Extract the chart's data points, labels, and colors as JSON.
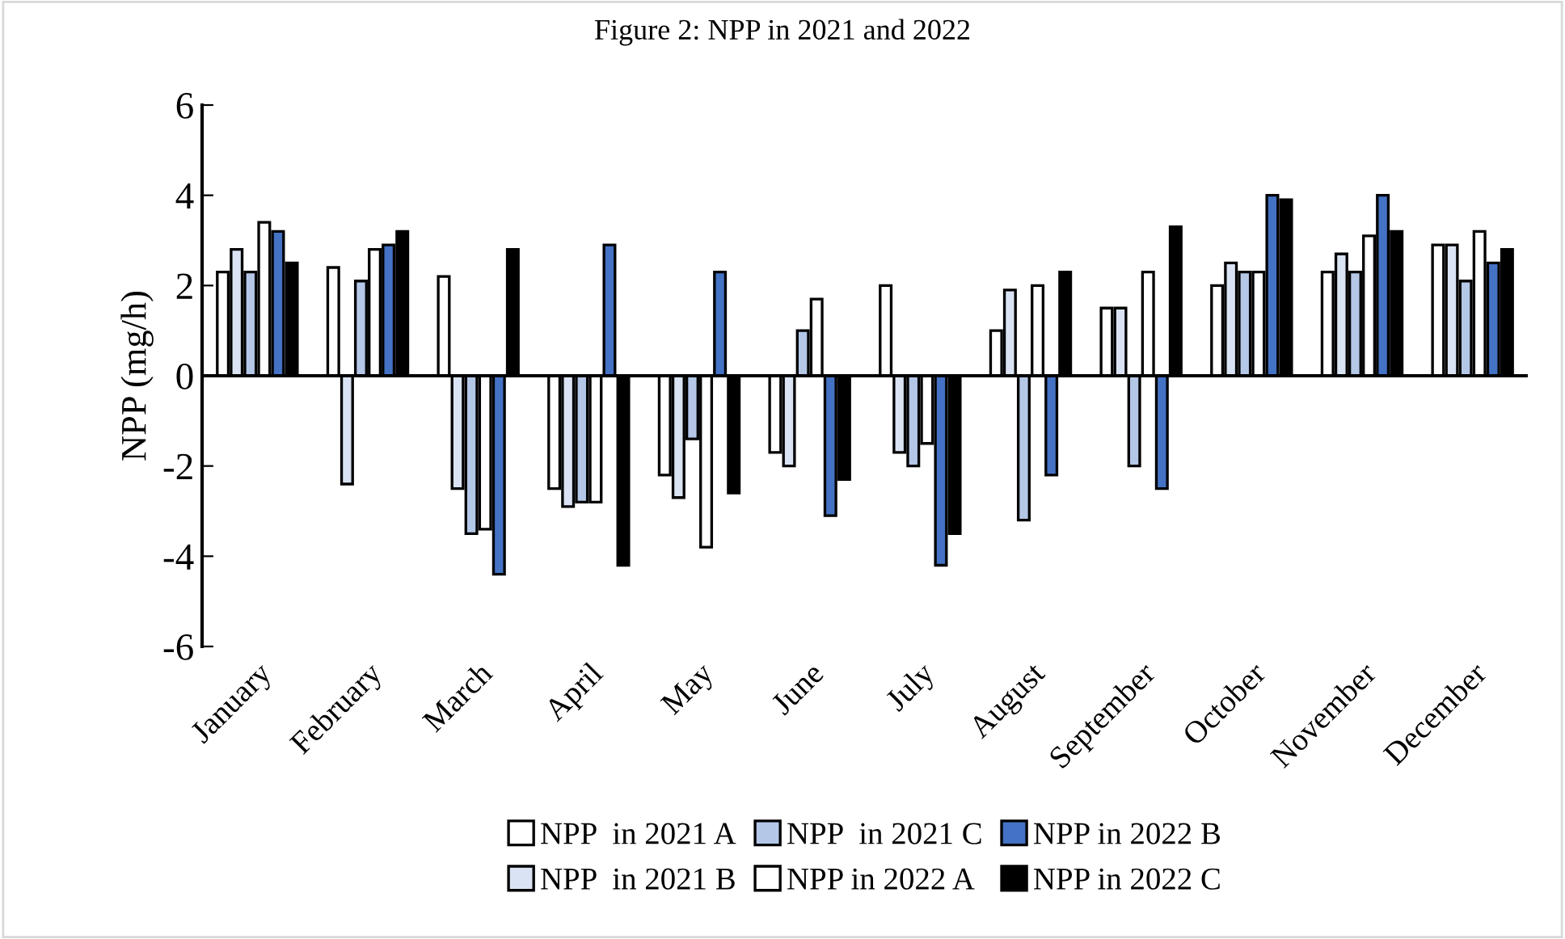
{
  "chart_data": {
    "type": "bar",
    "title": "Figure 2: NPP in 2021 and 2022",
    "ylabel": "NPP (mg/h)",
    "categories": [
      "January",
      "February",
      "March",
      "April",
      "May",
      "June",
      "July",
      "August",
      "September",
      "October",
      "November",
      "December"
    ],
    "series": [
      {
        "name": "NPP  in 2021 A",
        "color": "#ffffff",
        "values": [
          2.3,
          2.4,
          2.2,
          -2.5,
          -2.2,
          -1.7,
          2.0,
          1.0,
          1.5,
          2.0,
          2.3,
          2.9
        ]
      },
      {
        "name": "NPP  in 2021 B",
        "color": "#dae3f3",
        "values": [
          2.8,
          -2.4,
          -2.5,
          -2.9,
          -2.7,
          -2.0,
          -1.7,
          1.9,
          1.5,
          2.5,
          2.7,
          2.9
        ]
      },
      {
        "name": "NPP  in 2021 C",
        "color": "#b4c7e7",
        "values": [
          2.3,
          2.1,
          -3.5,
          -2.8,
          -1.4,
          1.0,
          -2.0,
          -3.2,
          -2.0,
          2.3,
          2.3,
          2.1
        ]
      },
      {
        "name": "NPP in 2022 A",
        "color": "#ffffff",
        "values": [
          3.4,
          2.8,
          -3.4,
          -2.8,
          -3.8,
          1.7,
          -1.5,
          2.0,
          2.3,
          2.3,
          3.1,
          3.2
        ]
      },
      {
        "name": "NPP in 2022 B",
        "color": "#4472c4",
        "values": [
          3.2,
          2.9,
          -4.4,
          2.9,
          2.3,
          -3.1,
          -4.2,
          -2.2,
          -2.5,
          4.0,
          4.0,
          2.5
        ]
      },
      {
        "name": "NPP in 2022 C",
        "color": "#000000",
        "values": [
          2.5,
          3.2,
          2.8,
          -4.2,
          -2.6,
          -2.3,
          -3.5,
          2.3,
          3.3,
          3.9,
          3.2,
          2.8
        ]
      }
    ],
    "ylim": [
      -6,
      6
    ],
    "yticks": [
      -6,
      -4,
      -2,
      0,
      2,
      4,
      6
    ],
    "legend": "bottom"
  }
}
